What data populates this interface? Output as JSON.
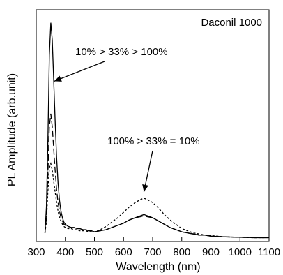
{
  "chart_data": {
    "type": "line",
    "title": "",
    "xlabel": "Wavelength (nm)",
    "ylabel": "PL Amplitude (arb.unit)",
    "xlim": [
      300,
      1100
    ],
    "ylim": [
      0,
      1
    ],
    "x_ticks": [
      300,
      400,
      500,
      600,
      700,
      800,
      900,
      1000,
      1100
    ],
    "y_ticks_labeled": false,
    "legend_text": "Daconil 1000",
    "legend_position": "top-right",
    "annotations": [
      {
        "text": "10% > 33% > 100%",
        "arrow_to": [
          362,
          0.73
        ]
      },
      {
        "text": "100% > 33% = 10%",
        "arrow_to": [
          670,
          0.22
        ]
      }
    ],
    "series": [
      {
        "style": "solid",
        "x": [
          330,
          335,
          340,
          345,
          350,
          355,
          360,
          365,
          370,
          375,
          380,
          385,
          390,
          395,
          400,
          410,
          420,
          430,
          440,
          450,
          460,
          470,
          480,
          490,
          500,
          520,
          540,
          560,
          580,
          600,
          620,
          640,
          660,
          670,
          680,
          700,
          720,
          740,
          760,
          780,
          800,
          820,
          840,
          860,
          880,
          900,
          950,
          1000,
          1050,
          1100
        ],
        "y": [
          0.03,
          0.15,
          0.45,
          0.85,
          1.0,
          0.92,
          0.74,
          0.55,
          0.38,
          0.26,
          0.18,
          0.13,
          0.1,
          0.08,
          0.07,
          0.06,
          0.055,
          0.055,
          0.05,
          0.05,
          0.045,
          0.045,
          0.04,
          0.04,
          0.035,
          0.04,
          0.045,
          0.055,
          0.065,
          0.075,
          0.09,
          0.1,
          0.11,
          0.115,
          0.11,
          0.1,
          0.085,
          0.07,
          0.055,
          0.045,
          0.035,
          0.03,
          0.025,
          0.02,
          0.02,
          0.015,
          0.012,
          0.01,
          0.008,
          0.008
        ]
      },
      {
        "style": "long-dash",
        "x": [
          330,
          335,
          340,
          345,
          350,
          355,
          360,
          365,
          370,
          375,
          380,
          385,
          390,
          395,
          400,
          410,
          420,
          430,
          440,
          450,
          460,
          470,
          480,
          490,
          500,
          520,
          540,
          560,
          580,
          600,
          620,
          640,
          660,
          670,
          680,
          700,
          720,
          740,
          760,
          780,
          800,
          820,
          840,
          860,
          880,
          900,
          950,
          1000,
          1050,
          1100
        ],
        "y": [
          0.03,
          0.1,
          0.3,
          0.52,
          0.58,
          0.52,
          0.42,
          0.32,
          0.23,
          0.17,
          0.13,
          0.1,
          0.085,
          0.07,
          0.065,
          0.06,
          0.055,
          0.055,
          0.05,
          0.05,
          0.045,
          0.045,
          0.04,
          0.04,
          0.035,
          0.04,
          0.045,
          0.055,
          0.065,
          0.075,
          0.09,
          0.1,
          0.105,
          0.11,
          0.105,
          0.1,
          0.085,
          0.07,
          0.055,
          0.045,
          0.035,
          0.03,
          0.025,
          0.02,
          0.02,
          0.015,
          0.012,
          0.01,
          0.008,
          0.008
        ]
      },
      {
        "style": "short-dash",
        "x": [
          330,
          335,
          340,
          345,
          350,
          355,
          360,
          365,
          370,
          375,
          380,
          385,
          390,
          395,
          400,
          410,
          420,
          430,
          440,
          450,
          460,
          470,
          480,
          490,
          500,
          520,
          540,
          560,
          580,
          600,
          620,
          640,
          660,
          670,
          680,
          700,
          720,
          740,
          760,
          780,
          800,
          820,
          840,
          860,
          880,
          900,
          950,
          1000,
          1050,
          1100
        ],
        "y": [
          0.03,
          0.08,
          0.22,
          0.33,
          0.35,
          0.32,
          0.27,
          0.22,
          0.17,
          0.13,
          0.1,
          0.085,
          0.07,
          0.06,
          0.055,
          0.05,
          0.05,
          0.045,
          0.045,
          0.04,
          0.04,
          0.04,
          0.035,
          0.035,
          0.035,
          0.045,
          0.06,
          0.08,
          0.1,
          0.125,
          0.15,
          0.17,
          0.185,
          0.19,
          0.185,
          0.17,
          0.145,
          0.115,
          0.09,
          0.07,
          0.05,
          0.04,
          0.03,
          0.025,
          0.02,
          0.018,
          0.012,
          0.01,
          0.008,
          0.008
        ]
      }
    ]
  }
}
